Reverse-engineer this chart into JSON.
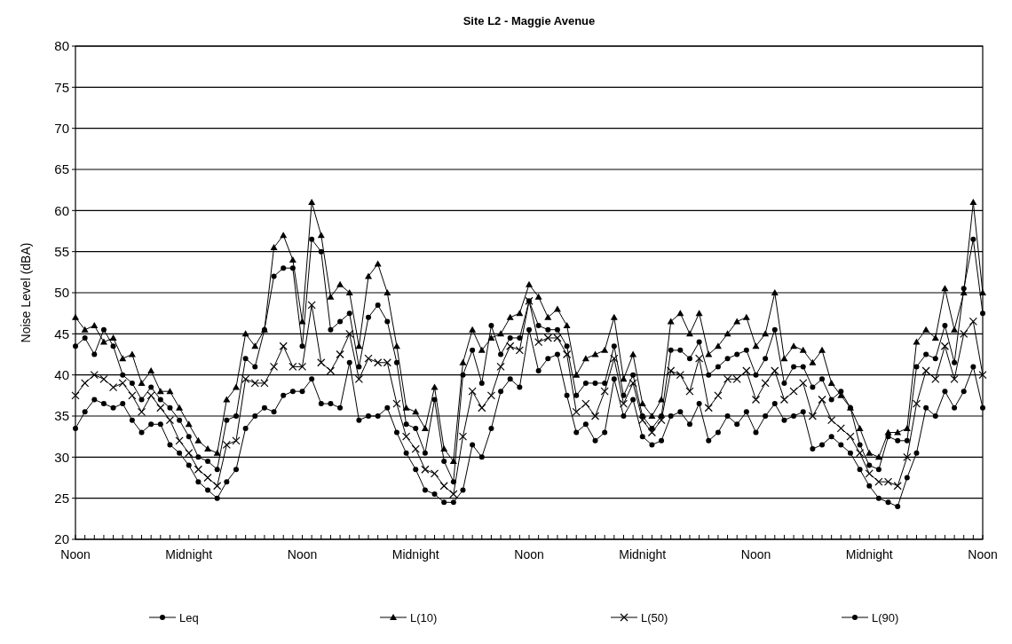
{
  "chart_data": {
    "type": "line",
    "title": "Site L2  -  Maggie Avenue",
    "ylabel": "Noise Level (dBA)",
    "categories": [
      "Noon",
      null,
      null,
      null,
      null,
      null,
      null,
      null,
      null,
      null,
      null,
      null,
      "Midnight",
      null,
      null,
      null,
      null,
      null,
      null,
      null,
      null,
      null,
      null,
      null,
      "Noon",
      null,
      null,
      null,
      null,
      null,
      null,
      null,
      null,
      null,
      null,
      null,
      "Midnight",
      null,
      null,
      null,
      null,
      null,
      null,
      null,
      null,
      null,
      null,
      null,
      "Noon",
      null,
      null,
      null,
      null,
      null,
      null,
      null,
      null,
      null,
      null,
      null,
      "Midnight",
      null,
      null,
      null,
      null,
      null,
      null,
      null,
      null,
      null,
      null,
      null,
      "Noon",
      null,
      null,
      null,
      null,
      null,
      null,
      null,
      null,
      null,
      null,
      null,
      "Midnight",
      null,
      null,
      null,
      null,
      null,
      null,
      null,
      null,
      null,
      null,
      null,
      "Noon"
    ],
    "ylim": [
      20,
      80
    ],
    "yticks": [
      20,
      25,
      30,
      35,
      40,
      45,
      50,
      55,
      60,
      65,
      70,
      75,
      80
    ],
    "grid": "y",
    "legend": "bottom",
    "line_style": "solid",
    "series": [
      {
        "name": "Leq",
        "color": "#000000",
        "marker": "circle",
        "values": [
          43.5,
          44.5,
          42.5,
          45.5,
          43.5,
          40,
          39,
          37,
          38.5,
          37,
          36,
          34.5,
          32.5,
          30,
          29.5,
          28.5,
          34.5,
          35,
          42,
          41,
          45.5,
          52,
          53,
          53,
          43.5,
          56.5,
          55,
          45.5,
          46.5,
          47.5,
          41,
          47,
          48.5,
          46.5,
          41.5,
          34,
          33.5,
          30.5,
          37,
          29.5,
          27,
          40,
          43,
          39,
          46,
          42.5,
          44.5,
          44.5,
          49,
          46,
          45.5,
          45.5,
          43.5,
          37.5,
          39,
          39,
          39,
          43.5,
          37.5,
          40,
          35,
          33.5,
          35,
          43,
          43,
          42,
          44,
          40,
          41,
          42,
          42.5,
          43,
          40,
          42,
          45.5,
          39,
          41,
          41,
          38.5,
          39.5,
          37,
          38,
          36,
          31.5,
          29,
          28.5,
          32.5,
          32,
          32,
          41,
          42.5,
          42,
          46,
          41.5,
          50.5,
          56.5,
          47.5
        ]
      },
      {
        "name": "L(10)",
        "color": "#000000",
        "marker": "triangle",
        "values": [
          47,
          45.5,
          46,
          44,
          44.5,
          42,
          42.5,
          39,
          40.5,
          38,
          38,
          36,
          34,
          32,
          31,
          30.5,
          37,
          38.5,
          45,
          43.5,
          45.5,
          55.5,
          57,
          54,
          46.5,
          61,
          57,
          49.5,
          51,
          50,
          43.5,
          52,
          53.5,
          50,
          43.5,
          36,
          35.5,
          33.5,
          38.5,
          31,
          29.5,
          41.5,
          45.5,
          43,
          44.5,
          45,
          47,
          47.5,
          51,
          49.5,
          47,
          48,
          46,
          40,
          42,
          42.5,
          43,
          47,
          39.5,
          42.5,
          36.5,
          35,
          37,
          46.5,
          47.5,
          45,
          47.5,
          42.5,
          43.5,
          45,
          46.5,
          47,
          43.5,
          45,
          50,
          42,
          43.5,
          43,
          41.5,
          43,
          39,
          37.5,
          36,
          33.5,
          30.5,
          30,
          33,
          33,
          33.5,
          44,
          45.5,
          44.5,
          50.5,
          45.5,
          50,
          61,
          50
        ]
      },
      {
        "name": "L(50)",
        "color": "#000000",
        "marker": "cross",
        "values": [
          37.5,
          39,
          40,
          39.5,
          38.5,
          39,
          37.5,
          35.5,
          37.5,
          36,
          34.5,
          32,
          30.5,
          28.5,
          27.5,
          26.5,
          31.5,
          32,
          39.5,
          39,
          39,
          41,
          43.5,
          41,
          41,
          48.5,
          41.5,
          40.5,
          42.5,
          45,
          39.5,
          42,
          41.5,
          41.5,
          36.5,
          32.5,
          31,
          28.5,
          28,
          26.5,
          25.5,
          32.5,
          38,
          36,
          37.5,
          41,
          43.5,
          43,
          49,
          44,
          44.5,
          44.5,
          42.5,
          35.5,
          36.5,
          35,
          38,
          42,
          36.5,
          39,
          34.5,
          33,
          34.5,
          40.5,
          40,
          38,
          42,
          36,
          37.5,
          39.5,
          39.5,
          40.5,
          37,
          39,
          40.5,
          37,
          38,
          39,
          35,
          37,
          34.5,
          33.5,
          32.5,
          30.5,
          28,
          27,
          27,
          26.5,
          30,
          36.5,
          40.5,
          39.5,
          43.5,
          39.5,
          45,
          46.5,
          40
        ]
      },
      {
        "name": "L(90)",
        "color": "#000000",
        "marker": "circle",
        "values": [
          33.5,
          35.5,
          37,
          36.5,
          36,
          36.5,
          34.5,
          33,
          34,
          34,
          31.5,
          30.5,
          29,
          27,
          26,
          25,
          27,
          28.5,
          33.5,
          35,
          36,
          35.5,
          37.5,
          38,
          38,
          39.5,
          36.5,
          36.5,
          36,
          41.5,
          34.5,
          35,
          35,
          36,
          33,
          30.5,
          28.5,
          26,
          25.5,
          24.5,
          24.5,
          26,
          31.5,
          30,
          33.5,
          38,
          39.5,
          38.5,
          45.5,
          40.5,
          42,
          42.5,
          37.5,
          33,
          34,
          32,
          33,
          39.5,
          35,
          37,
          32.5,
          31.5,
          32,
          35,
          35.5,
          34,
          36.5,
          32,
          33,
          35,
          34,
          35.5,
          33,
          35,
          36.5,
          34.5,
          35,
          35.5,
          31,
          31.5,
          32.5,
          31.5,
          30.5,
          28.5,
          26.5,
          25,
          24.5,
          24,
          27.5,
          30.5,
          36,
          35,
          38,
          36,
          38,
          41,
          36
        ]
      }
    ]
  }
}
